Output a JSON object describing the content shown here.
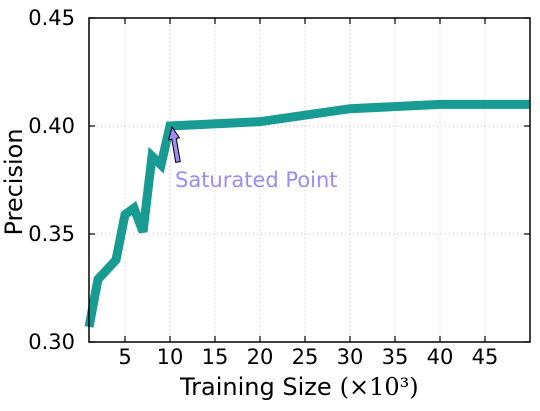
{
  "chart_data": {
    "type": "line",
    "x": [
      1,
      2,
      4,
      5,
      6,
      7,
      8,
      9,
      10,
      20,
      30,
      40,
      50
    ],
    "series": [
      {
        "name": "",
        "color": "#179b93",
        "values": [
          0.307,
          0.329,
          0.338,
          0.359,
          0.362,
          0.351,
          0.386,
          0.382,
          0.4,
          0.402,
          0.408,
          0.41,
          0.41
        ]
      }
    ],
    "xlabel": "Training Size",
    "xlabel_math": "(×10³)",
    "ylabel": "Precision",
    "xlim": [
      1,
      50
    ],
    "ylim": [
      0.3,
      0.45
    ],
    "xticks": [
      5,
      10,
      15,
      20,
      25,
      30,
      35,
      40,
      45
    ],
    "xtick_labels": [
      "5",
      "10",
      "15",
      "20",
      "25",
      "30",
      "35",
      "40",
      "45"
    ],
    "yticks": [
      0.3,
      0.35,
      0.4,
      0.45
    ],
    "ytick_labels": [
      "0.30",
      "0.35",
      "0.40",
      "0.45"
    ],
    "grid": true,
    "annotation": {
      "text": "Saturated Point",
      "x": 10,
      "y": 0.4,
      "color": "#9b8cf2"
    }
  }
}
